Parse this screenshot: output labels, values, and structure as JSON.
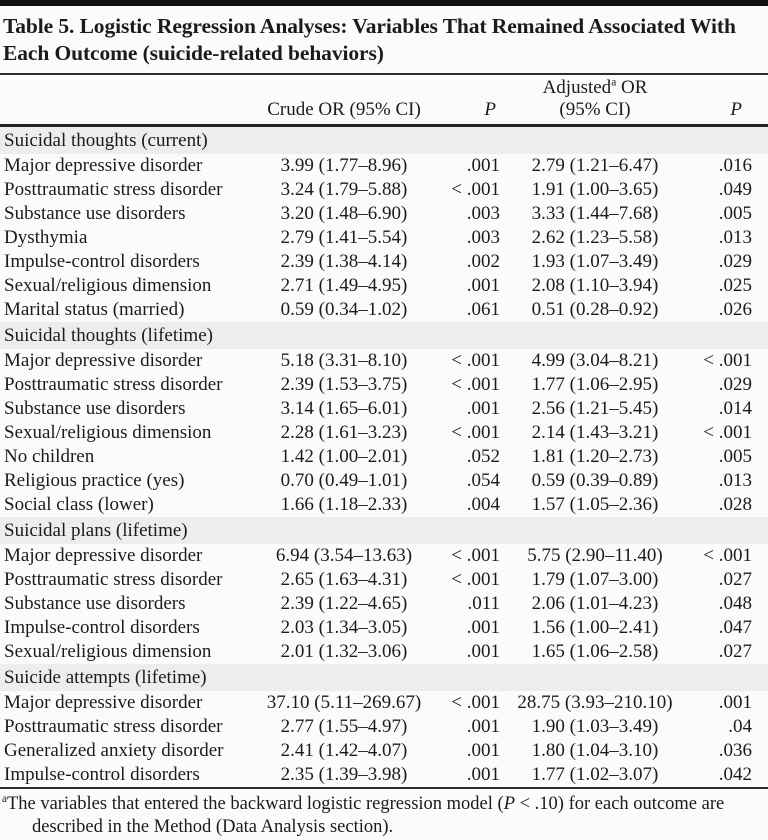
{
  "table": {
    "title": "Table 5. Logistic Regression Analyses: Variables That Remained Associated With Each Outcome (suicide-related behaviors)",
    "columns": {
      "crude": "Crude OR (95% CI)",
      "p1": "P",
      "adjusted_pre": "Adjusted",
      "adjusted_sup": "a",
      "adjusted_post": " OR",
      "adjusted_line2": "(95% CI)",
      "p2": "P"
    },
    "sections": [
      {
        "header": "Suicidal thoughts (current)",
        "rows": [
          [
            "Major depressive disorder",
            "3.99 (1.77–8.96)",
            ".001",
            "2.79 (1.21–6.47)",
            ".016"
          ],
          [
            "Posttraumatic stress disorder",
            "3.24 (1.79–5.88)",
            "< .001",
            "1.91 (1.00–3.65)",
            ".049"
          ],
          [
            "Substance use disorders",
            "3.20 (1.48–6.90)",
            ".003",
            "3.33 (1.44–7.68)",
            ".005"
          ],
          [
            "Dysthymia",
            "2.79 (1.41–5.54)",
            ".003",
            "2.62 (1.23–5.58)",
            ".013"
          ],
          [
            "Impulse-control disorders",
            "2.39 (1.38–4.14)",
            ".002",
            "1.93 (1.07–3.49)",
            ".029"
          ],
          [
            "Sexual/religious dimension",
            "2.71 (1.49–4.95)",
            ".001",
            "2.08 (1.10–3.94)",
            ".025"
          ],
          [
            "Marital status (married)",
            "0.59 (0.34–1.02)",
            ".061",
            "0.51 (0.28–0.92)",
            ".026"
          ]
        ]
      },
      {
        "header": "Suicidal thoughts (lifetime)",
        "rows": [
          [
            "Major depressive disorder",
            "5.18 (3.31–8.10)",
            "< .001",
            "4.99 (3.04–8.21)",
            "< .001"
          ],
          [
            "Posttraumatic stress disorder",
            "2.39 (1.53–3.75)",
            "< .001",
            "1.77 (1.06–2.95)",
            ".029"
          ],
          [
            "Substance use disorders",
            "3.14 (1.65–6.01)",
            ".001",
            "2.56 (1.21–5.45)",
            ".014"
          ],
          [
            "Sexual/religious dimension",
            "2.28 (1.61–3.23)",
            "< .001",
            "2.14 (1.43–3.21)",
            "< .001"
          ],
          [
            "No children",
            "1.42 (1.00–2.01)",
            ".052",
            "1.81 (1.20–2.73)",
            ".005"
          ],
          [
            "Religious practice (yes)",
            "0.70 (0.49–1.01)",
            ".054",
            "0.59 (0.39–0.89)",
            ".013"
          ],
          [
            "Social class (lower)",
            "1.66 (1.18–2.33)",
            ".004",
            "1.57 (1.05–2.36)",
            ".028"
          ]
        ]
      },
      {
        "header": "Suicidal plans (lifetime)",
        "rows": [
          [
            "Major depressive disorder",
            "6.94 (3.54–13.63)",
            "< .001",
            "5.75 (2.90–11.40)",
            "< .001"
          ],
          [
            "Posttraumatic stress disorder",
            "2.65 (1.63–4.31)",
            "< .001",
            "1.79 (1.07–3.00)",
            ".027"
          ],
          [
            "Substance use disorders",
            "2.39 (1.22–4.65)",
            ".011",
            "2.06 (1.01–4.23)",
            ".048"
          ],
          [
            "Impulse-control disorders",
            "2.03 (1.34–3.05)",
            ".001",
            "1.56 (1.00–2.41)",
            ".047"
          ],
          [
            "Sexual/religious dimension",
            "2.01 (1.32–3.06)",
            ".001",
            "1.65 (1.06–2.58)",
            ".027"
          ]
        ]
      },
      {
        "header": "Suicide attempts (lifetime)",
        "rows": [
          [
            "Major depressive disorder",
            "37.10 (5.11–269.67)",
            "< .001",
            "28.75 (3.93–210.10)",
            ".001"
          ],
          [
            "Posttraumatic stress disorder",
            "2.77 (1.55–4.97)",
            ".001",
            "1.90 (1.03–3.49)",
            ".04"
          ],
          [
            "Generalized anxiety disorder",
            "2.41 (1.42–4.07)",
            ".001",
            "1.80 (1.04–3.10)",
            ".036"
          ],
          [
            "Impulse-control disorders",
            "2.35 (1.39–3.98)",
            ".001",
            "1.77 (1.02–3.07)",
            ".042"
          ]
        ]
      }
    ],
    "footnote": {
      "marker": "a",
      "pre": "The variables that entered the backward logistic regression model (",
      "italic_p": "P",
      "post": " < .10) for each outcome are described in the Method (Data Analysis section)."
    }
  }
}
